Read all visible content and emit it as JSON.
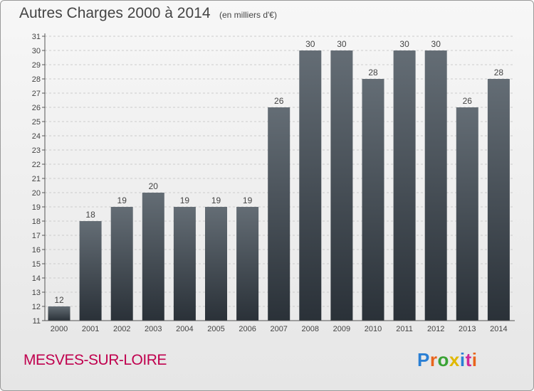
{
  "header": {
    "title": "Autres Charges 2000 à 2014",
    "subtitle": "(en milliers d'€)"
  },
  "footer": {
    "commune": "MESVES-SUR-LOIRE",
    "logo_text": "Proxiti",
    "logo_colors": [
      "#2a7fd4",
      "#e8641c",
      "#3aa335",
      "#e0b800",
      "#2a7fd4",
      "#d0289a",
      "#e8641c"
    ]
  },
  "colors": {
    "bar_top": "#646d75",
    "bar_bottom": "#2a3138",
    "axis": "#555555",
    "grid": "#cccccc",
    "text": "#444444"
  },
  "chart_data": {
    "type": "bar",
    "title": "Autres Charges 2000 à 2014",
    "xlabel": "",
    "ylabel": "",
    "categories": [
      "2000",
      "2001",
      "2002",
      "2003",
      "2004",
      "2005",
      "2006",
      "2007",
      "2008",
      "2009",
      "2010",
      "2011",
      "2012",
      "2013",
      "2014"
    ],
    "values": [
      12,
      18,
      19,
      20,
      19,
      19,
      19,
      26,
      30,
      30,
      28,
      30,
      30,
      26,
      28
    ],
    "data_labels": [
      "12",
      "18",
      "19",
      "20",
      "19",
      "19",
      "19",
      "26",
      "30",
      "30",
      "28",
      "30",
      "30",
      "26",
      "28"
    ],
    "ylim": [
      11,
      31
    ],
    "yticks": [
      "11",
      "12",
      "13",
      "14",
      "15",
      "16",
      "17",
      "18",
      "19",
      "20",
      "21",
      "22",
      "23",
      "24",
      "25",
      "26",
      "27",
      "28",
      "29",
      "30",
      "31"
    ],
    "grid": "dashed horizontal",
    "legend": "none"
  }
}
